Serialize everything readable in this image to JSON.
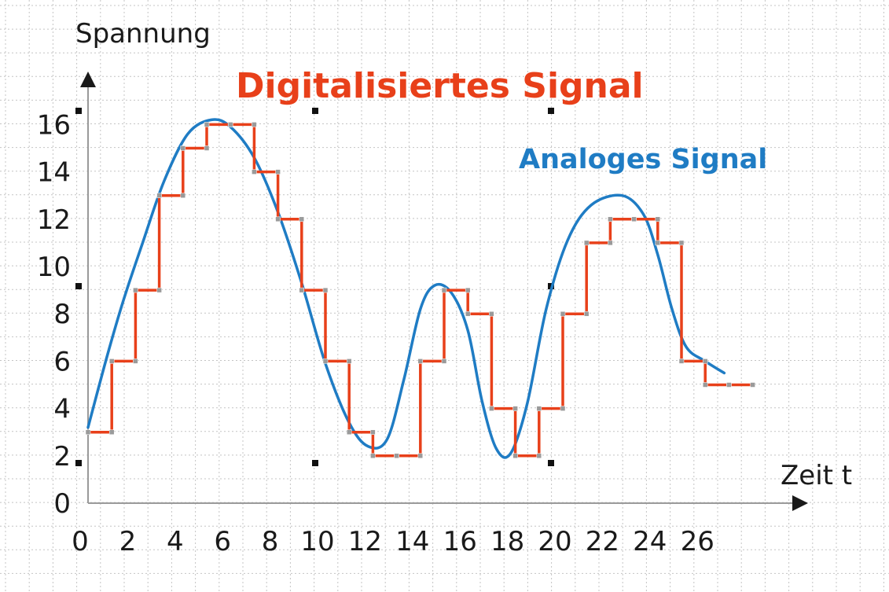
{
  "chart_data": {
    "type": "line",
    "xlabel": "Zeit t",
    "ylabel": "Spannung",
    "xlim": [
      0,
      28
    ],
    "ylim": [
      0,
      17
    ],
    "x_ticks": [
      "0",
      "2",
      "4",
      "6",
      "8",
      "10",
      "12",
      "14",
      "16",
      "18",
      "20",
      "22",
      "24",
      "26"
    ],
    "y_ticks": [
      "0",
      "2",
      "4",
      "6",
      "8",
      "10",
      "12",
      "14",
      "16"
    ],
    "grid": true,
    "series": [
      {
        "name": "Digitalisiertes Signal",
        "color": "#e8401a",
        "style": "step",
        "x": [
          0,
          1,
          2,
          3,
          4,
          5,
          6,
          7,
          8,
          9,
          10,
          11,
          12,
          13,
          14,
          15,
          16,
          17,
          18,
          19,
          20,
          21,
          22,
          23,
          24,
          25,
          26,
          27
        ],
        "values": [
          3,
          6,
          9,
          13,
          15,
          16,
          16,
          14,
          12,
          9,
          6,
          3,
          2,
          2,
          6,
          9,
          8,
          4,
          2,
          4,
          8,
          11,
          12,
          12,
          11,
          6,
          5,
          5
        ]
      },
      {
        "name": "Analoges Signal",
        "color": "#1f7cc4",
        "style": "smooth",
        "x": [
          0,
          0.8,
          1.5,
          2.3,
          3.2,
          4.2,
          5.2,
          6.0,
          7.0,
          8.0,
          9.0,
          10.0,
          11.0,
          11.8,
          12.6,
          13.3,
          14.0,
          14.6,
          15.3,
          16.0,
          16.6,
          17.2,
          17.8,
          18.5,
          19.3,
          20.2,
          21.2,
          22.5,
          23.4,
          24.0,
          24.6,
          25.2,
          26.0,
          26.8
        ],
        "values": [
          3.2,
          6.2,
          8.6,
          11.0,
          13.6,
          15.6,
          16.2,
          15.9,
          14.6,
          12.3,
          9.3,
          5.9,
          3.4,
          2.4,
          2.7,
          5.2,
          8.2,
          9.2,
          8.9,
          7.3,
          4.3,
          2.3,
          2.1,
          4.2,
          8.2,
          11.1,
          12.6,
          13.0,
          12.2,
          10.5,
          8.2,
          6.6,
          6.0,
          5.5
        ]
      }
    ],
    "annotations": {
      "digital": "Digitalisiertes Signal",
      "analog": "Analoges Signal"
    }
  }
}
